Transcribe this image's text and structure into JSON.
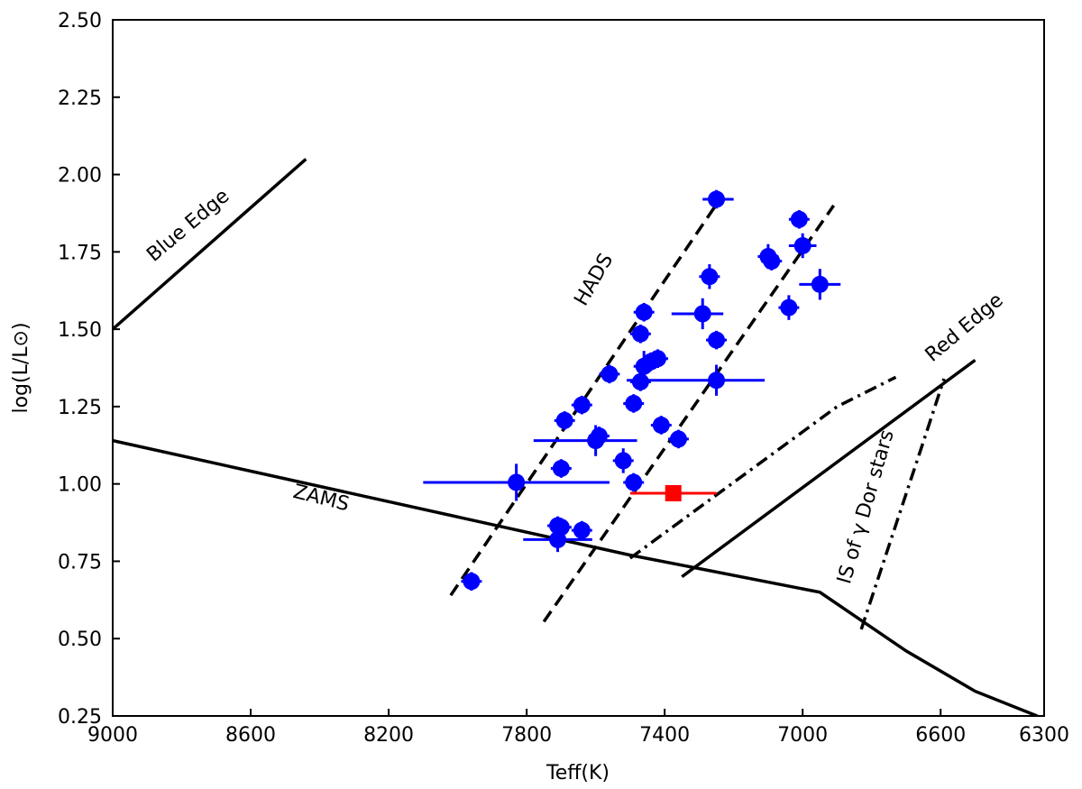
{
  "chart_data": {
    "type": "scatter",
    "xlabel": "Teff(K)",
    "ylabel": "log(L/L⊙)",
    "xlim": [
      9000,
      6300
    ],
    "ylim": [
      0.25,
      2.5
    ],
    "x_axis_reversed": true,
    "x_ticks": [
      9000,
      8600,
      8200,
      7800,
      7400,
      7000,
      6600,
      6300
    ],
    "y_ticks": [
      0.25,
      0.5,
      0.75,
      1.0,
      1.25,
      1.5,
      1.75,
      2.0,
      2.25,
      2.5
    ],
    "x_tick_labels": [
      "9000",
      "8600",
      "8200",
      "7800",
      "7400",
      "7000",
      "6600",
      "6300"
    ],
    "y_tick_labels": [
      "0.25",
      "0.50",
      "0.75",
      "1.00",
      "1.25",
      "1.50",
      "1.75",
      "2.00",
      "2.25",
      "2.50"
    ],
    "grid": false,
    "series": [
      {
        "color": "#0000ff",
        "marker": "circle",
        "points": [
          {
            "x": 7250,
            "y": 1.92,
            "xerr_lo": 40,
            "xerr_hi": 50,
            "yerr": 0.03
          },
          {
            "x": 7010,
            "y": 1.855,
            "xerr_lo": 30,
            "xerr_hi": 30,
            "yerr": 0.03
          },
          {
            "x": 7000,
            "y": 1.77,
            "xerr_lo": 40,
            "xerr_hi": 40,
            "yerr": 0.04
          },
          {
            "x": 7100,
            "y": 1.735,
            "xerr_lo": 30,
            "xerr_hi": 30,
            "yerr": 0.04
          },
          {
            "x": 7090,
            "y": 1.72,
            "xerr_lo": 30,
            "xerr_hi": 30,
            "yerr": 0.03
          },
          {
            "x": 6950,
            "y": 1.645,
            "xerr_lo": 60,
            "xerr_hi": 60,
            "yerr": 0.05
          },
          {
            "x": 7270,
            "y": 1.67,
            "xerr_lo": 30,
            "xerr_hi": 30,
            "yerr": 0.04
          },
          {
            "x": 7040,
            "y": 1.57,
            "xerr_lo": 30,
            "xerr_hi": 30,
            "yerr": 0.04
          },
          {
            "x": 7290,
            "y": 1.55,
            "xerr_lo": 90,
            "xerr_hi": 60,
            "yerr": 0.05
          },
          {
            "x": 7460,
            "y": 1.555,
            "xerr_lo": 30,
            "xerr_hi": 30,
            "yerr": 0.03
          },
          {
            "x": 7470,
            "y": 1.485,
            "xerr_lo": 30,
            "xerr_hi": 30,
            "yerr": 0.03
          },
          {
            "x": 7250,
            "y": 1.465,
            "xerr_lo": 30,
            "xerr_hi": 30,
            "yerr": 0.03
          },
          {
            "x": 7420,
            "y": 1.405,
            "xerr_lo": 30,
            "xerr_hi": 30,
            "yerr": 0.03
          },
          {
            "x": 7440,
            "y": 1.395,
            "xerr_lo": 30,
            "xerr_hi": 30,
            "yerr": 0.03
          },
          {
            "x": 7460,
            "y": 1.38,
            "xerr_lo": 30,
            "xerr_hi": 30,
            "yerr": 0.05
          },
          {
            "x": 7560,
            "y": 1.355,
            "xerr_lo": 30,
            "xerr_hi": 30,
            "yerr": 0.03
          },
          {
            "x": 7470,
            "y": 1.33,
            "xerr_lo": 30,
            "xerr_hi": 30,
            "yerr": 0.03
          },
          {
            "x": 7250,
            "y": 1.335,
            "xerr_lo": 260,
            "xerr_hi": 140,
            "yerr": 0.05
          },
          {
            "x": 7640,
            "y": 1.255,
            "xerr_lo": 30,
            "xerr_hi": 30,
            "yerr": 0.03
          },
          {
            "x": 7490,
            "y": 1.26,
            "xerr_lo": 30,
            "xerr_hi": 30,
            "yerr": 0.03
          },
          {
            "x": 7690,
            "y": 1.205,
            "xerr_lo": 30,
            "xerr_hi": 30,
            "yerr": 0.03
          },
          {
            "x": 7410,
            "y": 1.19,
            "xerr_lo": 30,
            "xerr_hi": 30,
            "yerr": 0.03
          },
          {
            "x": 7590,
            "y": 1.155,
            "xerr_lo": 30,
            "xerr_hi": 30,
            "yerr": 0.03
          },
          {
            "x": 7360,
            "y": 1.145,
            "xerr_lo": 30,
            "xerr_hi": 30,
            "yerr": 0.03
          },
          {
            "x": 7600,
            "y": 1.14,
            "xerr_lo": 180,
            "xerr_hi": 120,
            "yerr": 0.05
          },
          {
            "x": 7520,
            "y": 1.075,
            "xerr_lo": 30,
            "xerr_hi": 30,
            "yerr": 0.04
          },
          {
            "x": 7700,
            "y": 1.05,
            "xerr_lo": 30,
            "xerr_hi": 30,
            "yerr": 0.03
          },
          {
            "x": 7830,
            "y": 1.005,
            "xerr_lo": 270,
            "xerr_hi": 270,
            "yerr": 0.06
          },
          {
            "x": 7490,
            "y": 1.005,
            "xerr_lo": 30,
            "xerr_hi": 30,
            "yerr": 0.03
          },
          {
            "x": 7710,
            "y": 0.865,
            "xerr_lo": 30,
            "xerr_hi": 30,
            "yerr": 0.03
          },
          {
            "x": 7700,
            "y": 0.86,
            "xerr_lo": 30,
            "xerr_hi": 30,
            "yerr": 0.03
          },
          {
            "x": 7640,
            "y": 0.85,
            "xerr_lo": 30,
            "xerr_hi": 30,
            "yerr": 0.03
          },
          {
            "x": 7710,
            "y": 0.82,
            "xerr_lo": 100,
            "xerr_hi": 100,
            "yerr": 0.04
          },
          {
            "x": 7960,
            "y": 0.685,
            "xerr_lo": 30,
            "xerr_hi": 30,
            "yerr": 0.03
          }
        ]
      },
      {
        "color": "#ff0000",
        "marker": "square",
        "points": [
          {
            "x": 7375,
            "y": 0.97,
            "xerr_lo": 125,
            "xerr_hi": 125,
            "yerr": 0.0
          }
        ]
      }
    ],
    "lines": [
      {
        "name": "Blue Edge",
        "style": "solid",
        "points": [
          [
            9000,
            1.5
          ],
          [
            8440,
            2.05
          ]
        ]
      },
      {
        "name": "ZAMS",
        "style": "solid",
        "points": [
          [
            9000,
            1.14
          ],
          [
            7500,
            0.77
          ],
          [
            6950,
            0.65
          ],
          [
            6700,
            0.46
          ],
          [
            6500,
            0.33
          ],
          [
            6320,
            0.25
          ]
        ]
      },
      {
        "name": "Red Edge",
        "style": "solid",
        "points": [
          [
            7350,
            0.7
          ],
          [
            6500,
            1.4
          ]
        ]
      },
      {
        "name": "HADS",
        "style": "dashed",
        "points": [
          [
            8020,
            0.64
          ],
          [
            7240,
            1.92
          ]
        ]
      },
      {
        "style": "dashed",
        "points": [
          [
            7750,
            0.555
          ],
          [
            6910,
            1.9
          ]
        ]
      },
      {
        "style": "dashdot",
        "points": [
          [
            7500,
            0.76
          ],
          [
            6900,
            1.25
          ],
          [
            6730,
            1.345
          ]
        ]
      },
      {
        "style": "dashdot",
        "points": [
          [
            6830,
            0.53
          ],
          [
            6640,
            1.17
          ],
          [
            6590,
            1.34
          ]
        ]
      }
    ],
    "annotations": [
      {
        "text": "Blue Edge",
        "x": 8770,
        "y": 1.82,
        "rotation": -40
      },
      {
        "text": "HADS",
        "x": 7590,
        "y": 1.65,
        "rotation": -60
      },
      {
        "text": "ZAMS",
        "x": 8400,
        "y": 0.935,
        "rotation": 14
      },
      {
        "text": "Red Edge",
        "x": 6520,
        "y": 1.49,
        "rotation": -40
      },
      {
        "text": "IS of γ Dor stars",
        "x": 6800,
        "y": 0.92,
        "rotation": -74
      }
    ]
  }
}
